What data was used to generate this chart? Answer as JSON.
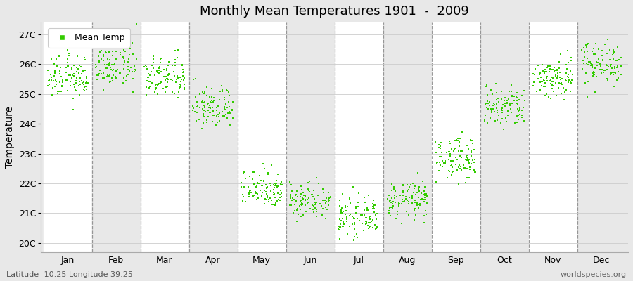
{
  "title": "Monthly Mean Temperatures 1901  -  2009",
  "ylabel": "Temperature",
  "xlabel_bottom_left": "Latitude -10.25 Longitude 39.25",
  "xlabel_bottom_right": "worldspecies.org",
  "ytick_labels": [
    "20C",
    "21C",
    "22C",
    "23C",
    "24C",
    "25C",
    "26C",
    "27C"
  ],
  "ytick_values": [
    20,
    21,
    22,
    23,
    24,
    25,
    26,
    27
  ],
  "ylim": [
    19.7,
    27.4
  ],
  "months": [
    "Jan",
    "Feb",
    "Mar",
    "Apr",
    "May",
    "Jun",
    "Jul",
    "Aug",
    "Sep",
    "Oct",
    "Nov",
    "Dec"
  ],
  "month_centers": [
    1,
    2,
    3,
    4,
    5,
    6,
    7,
    8,
    9,
    10,
    11,
    12
  ],
  "mean_by_month": [
    25.55,
    25.95,
    25.55,
    24.55,
    21.85,
    21.45,
    20.85,
    21.45,
    22.85,
    24.55,
    25.55,
    26.05
  ],
  "spread_by_month": [
    0.65,
    0.65,
    0.65,
    0.65,
    0.6,
    0.55,
    0.55,
    0.55,
    0.65,
    0.65,
    0.65,
    0.65
  ],
  "dot_color": "#33cc00",
  "dot_size": 2.5,
  "background_color": "#e8e8e8",
  "band_white_color": "#ffffff",
  "band_grey_color": "#e8e8e8",
  "dashed_line_color": "#888888",
  "legend_label": "Mean Temp",
  "n_years": 109
}
